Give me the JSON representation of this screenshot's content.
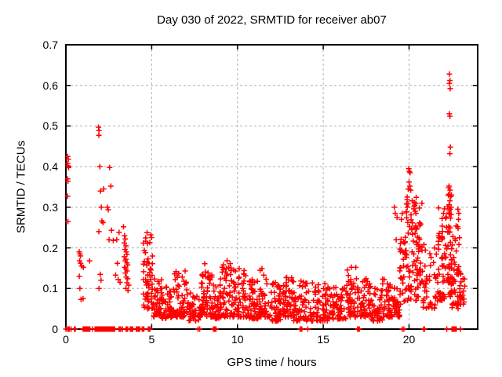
{
  "chart_data": {
    "type": "scatter",
    "title": "Day 030 of 2022, SRMTID for receiver ab07",
    "xlabel": "GPS time / hours",
    "ylabel": "SRMTID / TECUs",
    "xlim": [
      0,
      24
    ],
    "ylim": [
      0,
      0.7
    ],
    "xticks": [
      0,
      5,
      10,
      15,
      20
    ],
    "yticks": [
      0,
      0.1,
      0.2,
      0.3,
      0.4,
      0.5,
      0.6,
      0.7
    ],
    "grid": true,
    "legend": false,
    "marker": "plus",
    "colors": {
      "points": "#ff0000",
      "grid": "#b0b0b0",
      "border": "#000000",
      "text": "#000000"
    },
    "series_name": "SRMTID",
    "points": [
      [
        0.1,
        0.425
      ],
      [
        0.14,
        0.418
      ],
      [
        0.1,
        0.408
      ],
      [
        0.13,
        0.402
      ],
      [
        0.16,
        0.398
      ],
      [
        0.1,
        0.37
      ],
      [
        0.12,
        0.364
      ],
      [
        0.1,
        0.327
      ],
      [
        0.12,
        0.265
      ],
      [
        0.78,
        0.19
      ],
      [
        0.82,
        0.185
      ],
      [
        0.85,
        0.18
      ],
      [
        0.8,
        0.168
      ],
      [
        0.86,
        0.162
      ],
      [
        0.92,
        0.155
      ],
      [
        1.02,
        0.152
      ],
      [
        0.78,
        0.13
      ],
      [
        1.38,
        0.168
      ],
      [
        0.82,
        0.1
      ],
      [
        0.88,
        0.073
      ],
      [
        1.0,
        0.075
      ],
      [
        1.9,
        0.497
      ],
      [
        1.93,
        0.489
      ],
      [
        1.92,
        0.477
      ],
      [
        1.98,
        0.4
      ],
      [
        2.02,
        0.34
      ],
      [
        2.06,
        0.3
      ],
      [
        2.1,
        0.266
      ],
      [
        2.16,
        0.262
      ],
      [
        1.92,
        0.24
      ],
      [
        2.0,
        0.135
      ],
      [
        2.05,
        0.12
      ],
      [
        1.93,
        0.1
      ],
      [
        2.2,
        0.345
      ],
      [
        2.55,
        0.398
      ],
      [
        2.62,
        0.352
      ],
      [
        2.42,
        0.3
      ],
      [
        2.47,
        0.294
      ],
      [
        2.66,
        0.243
      ],
      [
        2.52,
        0.22
      ],
      [
        2.76,
        0.218
      ],
      [
        2.96,
        0.22
      ],
      [
        3.1,
        0.238
      ],
      [
        3.0,
        0.162
      ],
      [
        3.05,
        0.122
      ],
      [
        3.16,
        0.115
      ],
      [
        2.9,
        0.133
      ],
      [
        3.36,
        0.252
      ],
      [
        3.42,
        0.23
      ],
      [
        3.46,
        0.222
      ],
      [
        3.4,
        0.212
      ],
      [
        3.5,
        0.205
      ],
      [
        3.44,
        0.196
      ],
      [
        3.52,
        0.19
      ],
      [
        3.56,
        0.184
      ],
      [
        3.4,
        0.178
      ],
      [
        3.5,
        0.172
      ],
      [
        3.46,
        0.168
      ],
      [
        3.56,
        0.163
      ],
      [
        3.6,
        0.158
      ],
      [
        3.42,
        0.152
      ],
      [
        3.5,
        0.148
      ],
      [
        3.56,
        0.143
      ],
      [
        3.46,
        0.138
      ],
      [
        3.52,
        0.128
      ],
      [
        3.6,
        0.124
      ],
      [
        3.56,
        0.114
      ],
      [
        3.66,
        0.108
      ],
      [
        3.5,
        0.1
      ],
      [
        3.62,
        0.095
      ],
      [
        19.15,
        0.3
      ],
      [
        19.2,
        0.285
      ],
      [
        19.3,
        0.275
      ],
      [
        19.25,
        0.22
      ],
      [
        19.55,
        0.27
      ],
      [
        19.6,
        0.285
      ],
      [
        19.85,
        0.308
      ],
      [
        19.9,
        0.3
      ],
      [
        19.98,
        0.395
      ],
      [
        20.02,
        0.388
      ],
      [
        20.06,
        0.385
      ],
      [
        20.0,
        0.362
      ],
      [
        20.05,
        0.352
      ],
      [
        19.95,
        0.345
      ],
      [
        20.1,
        0.342
      ],
      [
        20.3,
        0.312
      ],
      [
        20.33,
        0.305
      ],
      [
        20.28,
        0.296
      ],
      [
        20.35,
        0.29
      ],
      [
        20.4,
        0.285
      ],
      [
        20.6,
        0.298
      ],
      [
        20.75,
        0.31
      ],
      [
        22.35,
        0.628
      ],
      [
        22.38,
        0.612
      ],
      [
        22.35,
        0.605
      ],
      [
        22.4,
        0.592
      ],
      [
        22.35,
        0.53
      ],
      [
        22.38,
        0.524
      ],
      [
        22.41,
        0.448
      ],
      [
        22.38,
        0.432
      ],
      [
        22.33,
        0.352
      ],
      [
        22.39,
        0.342
      ],
      [
        22.33,
        0.332
      ],
      [
        22.43,
        0.326
      ],
      [
        22.38,
        0.316
      ],
      [
        22.33,
        0.306
      ],
      [
        22.45,
        0.3
      ],
      [
        22.4,
        0.295
      ],
      [
        22.33,
        0.286
      ],
      [
        22.85,
        0.295
      ],
      [
        22.9,
        0.285
      ],
      [
        22.88,
        0.27
      ]
    ],
    "zero_x": [
      0.0,
      0.1,
      0.15,
      0.2,
      0.3,
      0.5,
      0.55,
      1.0,
      1.05,
      1.1,
      1.15,
      1.2,
      1.25,
      1.3,
      1.35,
      1.4,
      1.55,
      1.7,
      1.75,
      1.8,
      1.85,
      1.9,
      1.95,
      2.0,
      2.05,
      2.1,
      2.15,
      2.2,
      2.25,
      2.3,
      2.35,
      2.4,
      2.45,
      2.5,
      2.55,
      2.6,
      2.65,
      2.7,
      2.75,
      2.8,
      2.85,
      3.1,
      3.15,
      3.2,
      3.3,
      3.5,
      3.55,
      3.6,
      3.75,
      3.8,
      3.85,
      3.9,
      4.1,
      4.15,
      4.2,
      4.25,
      4.3,
      4.45,
      4.5,
      4.55,
      4.8,
      4.85,
      4.9,
      7.7,
      7.8,
      8.6,
      8.65,
      8.7,
      8.75,
      13.65,
      13.7,
      13.75,
      14.1,
      17.0,
      17.05,
      17.1,
      19.6,
      19.7,
      20.85,
      20.9,
      22.2,
      22.5,
      22.55,
      22.6,
      22.65,
      22.7,
      22.75,
      23.0
    ],
    "band_segments": [
      {
        "x0": 4.5,
        "x1": 5.1,
        "ymin": 0.05,
        "ymax": 0.24,
        "n": 60,
        "bias": 1.6
      },
      {
        "x0": 5.1,
        "x1": 5.6,
        "ymin": 0.03,
        "ymax": 0.125,
        "n": 38,
        "bias": 1.8
      },
      {
        "x0": 5.6,
        "x1": 6.2,
        "ymin": 0.025,
        "ymax": 0.115,
        "n": 45,
        "bias": 1.8
      },
      {
        "x0": 6.2,
        "x1": 7.15,
        "ymin": 0.03,
        "ymax": 0.145,
        "n": 70,
        "bias": 1.75
      },
      {
        "x0": 7.15,
        "x1": 7.9,
        "ymin": 0.02,
        "ymax": 0.105,
        "n": 50,
        "bias": 1.8
      },
      {
        "x0": 7.9,
        "x1": 8.35,
        "ymin": 0.03,
        "ymax": 0.165,
        "n": 40,
        "bias": 1.7
      },
      {
        "x0": 8.35,
        "x1": 8.7,
        "ymin": 0.03,
        "ymax": 0.135,
        "n": 30,
        "bias": 1.8
      },
      {
        "x0": 8.7,
        "x1": 9.0,
        "ymin": 0.025,
        "ymax": 0.11,
        "n": 25,
        "bias": 1.8
      },
      {
        "x0": 9.0,
        "x1": 9.65,
        "ymin": 0.03,
        "ymax": 0.178,
        "n": 50,
        "bias": 1.8
      },
      {
        "x0": 9.65,
        "x1": 10.45,
        "ymin": 0.03,
        "ymax": 0.155,
        "n": 60,
        "bias": 1.9
      },
      {
        "x0": 10.45,
        "x1": 11.25,
        "ymin": 0.025,
        "ymax": 0.135,
        "n": 55,
        "bias": 1.9
      },
      {
        "x0": 11.25,
        "x1": 11.75,
        "ymin": 0.03,
        "ymax": 0.15,
        "n": 40,
        "bias": 1.8
      },
      {
        "x0": 11.75,
        "x1": 12.65,
        "ymin": 0.02,
        "ymax": 0.115,
        "n": 60,
        "bias": 1.8
      },
      {
        "x0": 12.65,
        "x1": 13.25,
        "ymin": 0.03,
        "ymax": 0.13,
        "n": 45,
        "bias": 1.8
      },
      {
        "x0": 13.25,
        "x1": 14.25,
        "ymin": 0.02,
        "ymax": 0.12,
        "n": 60,
        "bias": 1.9
      },
      {
        "x0": 14.25,
        "x1": 15.25,
        "ymin": 0.02,
        "ymax": 0.115,
        "n": 60,
        "bias": 1.9
      },
      {
        "x0": 15.25,
        "x1": 16.35,
        "ymin": 0.025,
        "ymax": 0.105,
        "n": 65,
        "bias": 1.8
      },
      {
        "x0": 16.35,
        "x1": 16.95,
        "ymin": 0.03,
        "ymax": 0.155,
        "n": 45,
        "bias": 1.8
      },
      {
        "x0": 16.95,
        "x1": 17.75,
        "ymin": 0.03,
        "ymax": 0.13,
        "n": 50,
        "bias": 1.8
      },
      {
        "x0": 17.75,
        "x1": 18.45,
        "ymin": 0.02,
        "ymax": 0.105,
        "n": 45,
        "bias": 1.8
      },
      {
        "x0": 18.45,
        "x1": 18.85,
        "ymin": 0.03,
        "ymax": 0.125,
        "n": 30,
        "bias": 1.8
      },
      {
        "x0": 18.85,
        "x1": 19.45,
        "ymin": 0.03,
        "ymax": 0.11,
        "n": 40,
        "bias": 1.8
      },
      {
        "x0": 19.45,
        "x1": 19.8,
        "ymin": 0.06,
        "ymax": 0.24,
        "n": 30,
        "bias": 1.4
      },
      {
        "x0": 19.8,
        "x1": 20.45,
        "ymin": 0.07,
        "ymax": 0.33,
        "n": 60,
        "bias": 1.5
      },
      {
        "x0": 20.45,
        "x1": 20.7,
        "ymin": 0.08,
        "ymax": 0.3,
        "n": 30,
        "bias": 1.4
      },
      {
        "x0": 20.7,
        "x1": 21.7,
        "ymin": 0.05,
        "ymax": 0.21,
        "n": 50,
        "bias": 1.6
      },
      {
        "x0": 21.7,
        "x1": 22.25,
        "ymin": 0.07,
        "ymax": 0.3,
        "n": 55,
        "bias": 1.4
      },
      {
        "x0": 22.25,
        "x1": 22.5,
        "ymin": 0.08,
        "ymax": 0.35,
        "n": 45,
        "bias": 1.3
      },
      {
        "x0": 22.5,
        "x1": 23.0,
        "ymin": 0.05,
        "ymax": 0.26,
        "n": 45,
        "bias": 1.5
      },
      {
        "x0": 23.0,
        "x1": 23.25,
        "ymin": 0.06,
        "ymax": 0.16,
        "n": 15,
        "bias": 1.6
      }
    ]
  }
}
